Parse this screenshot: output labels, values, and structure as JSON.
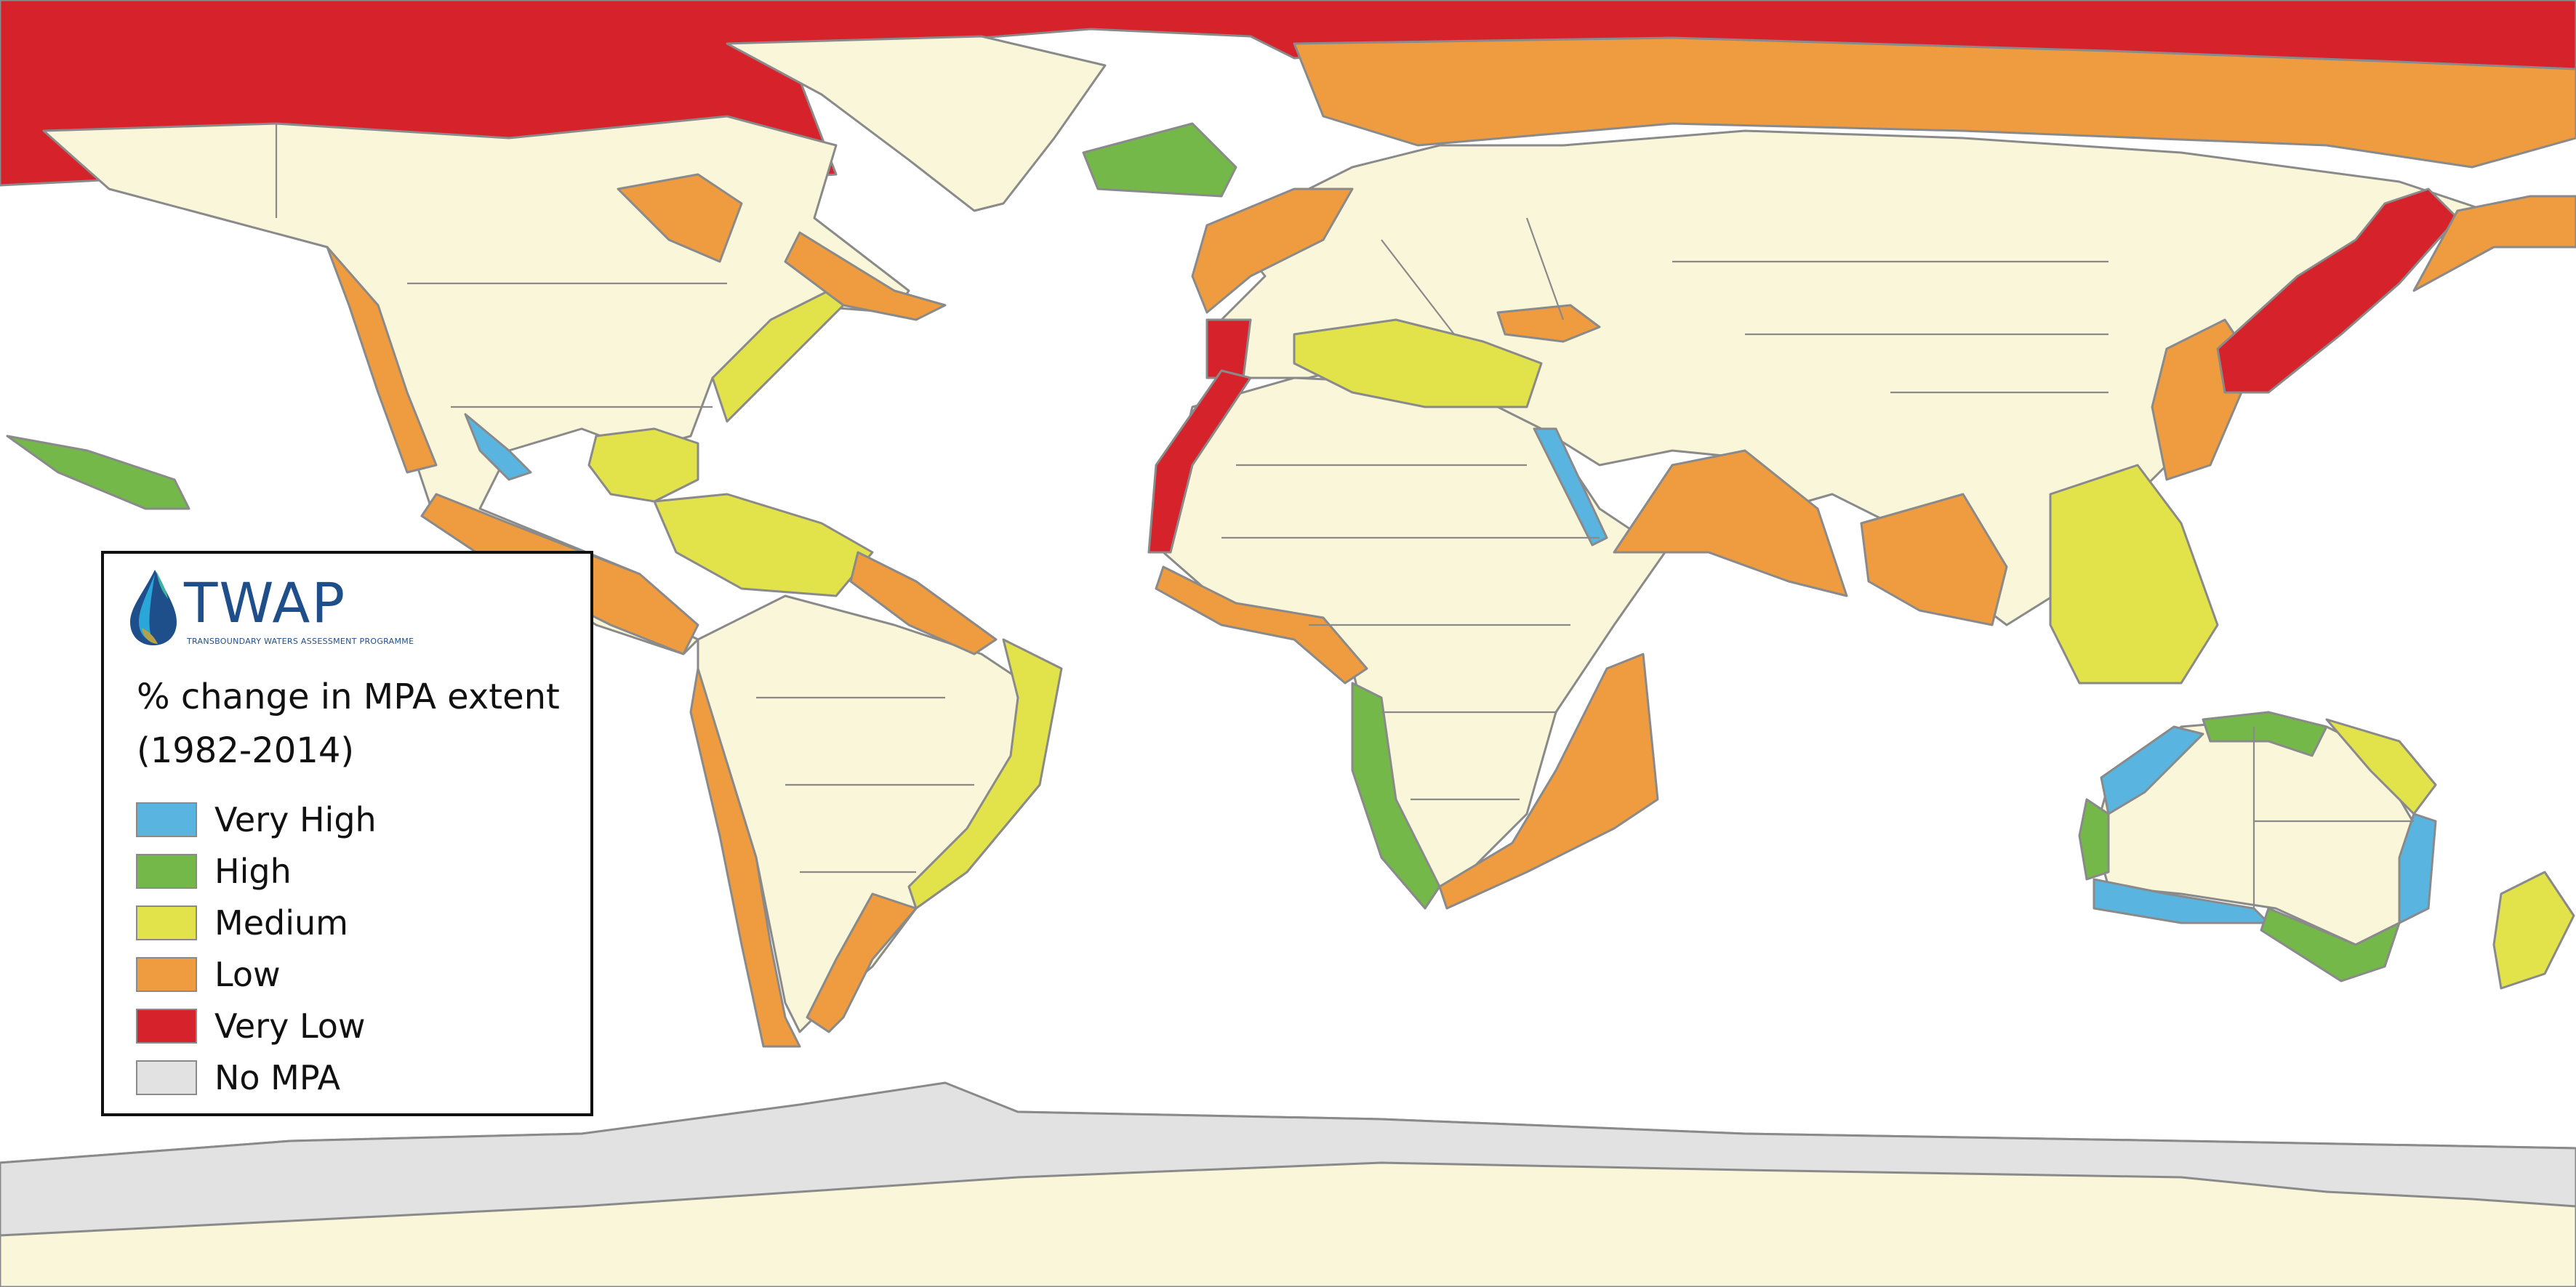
{
  "logo": {
    "word": "TWAP",
    "subtitle": "TRANSBOUNDARY WATERS ASSESSMENT PROGRAMME"
  },
  "legend": {
    "title_line1": "% change in MPA extent",
    "title_line2": "(1982-2014)",
    "items": [
      {
        "label": "Very High",
        "color": "#5ab4e0"
      },
      {
        "label": "High",
        "color": "#74b84a"
      },
      {
        "label": "Medium",
        "color": "#e2e24b"
      },
      {
        "label": "Low",
        "color": "#ee9c3f"
      },
      {
        "label": "Very Low",
        "color": "#d6222b"
      },
      {
        "label": "No MPA",
        "color": "#e2e2e2"
      }
    ]
  },
  "colors": {
    "land": "#faf6da",
    "ocean": "#ffffff",
    "outline": "#8a8a8a"
  }
}
